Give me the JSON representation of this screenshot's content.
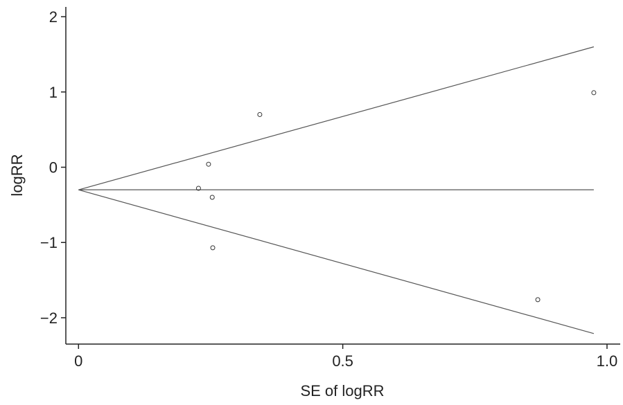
{
  "chart_data": {
    "type": "scatter",
    "xlabel": "SE of logRR",
    "ylabel": "logRR",
    "x": [
      0.227,
      0.246,
      0.253,
      0.254,
      0.343,
      0.869,
      0.975
    ],
    "values": [
      -0.28,
      0.04,
      -0.4,
      -1.07,
      0.7,
      -1.76,
      0.99
    ],
    "color": "#333333",
    "lines": [
      {
        "x": [
          0,
          0.975
        ],
        "values": [
          -0.3,
          -0.3
        ],
        "color": "#555555"
      },
      {
        "x": [
          0,
          0.975
        ],
        "values": [
          -0.3,
          1.6
        ],
        "color": "#555555"
      },
      {
        "x": [
          0,
          0.975
        ],
        "values": [
          -0.3,
          -2.21
        ],
        "color": "#555555"
      }
    ],
    "xlim": [
      -0.024,
      1.025
    ],
    "ylim": [
      -2.35,
      2.13
    ],
    "xticks": [
      0,
      0.5,
      {
        "value": 1,
        "label": "1.0"
      }
    ],
    "yticks": [
      {
        "value": -2,
        "label": "−2"
      },
      {
        "value": -1,
        "label": "−1"
      },
      0,
      1,
      2
    ],
    "grid": false
  }
}
